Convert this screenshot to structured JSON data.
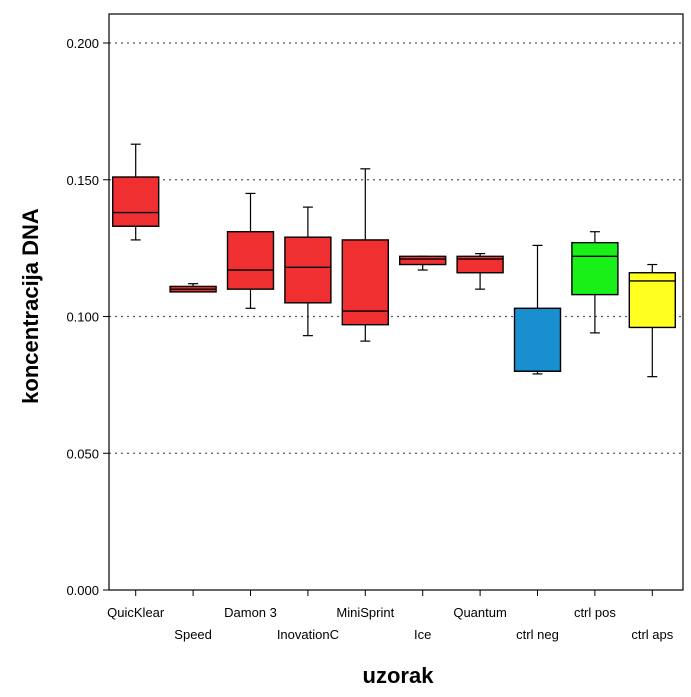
{
  "chart_data": {
    "type": "boxplot",
    "xlabel": "uzorak",
    "ylabel": "koncentracija DNA",
    "ylim": [
      0,
      0.2
    ],
    "yticks": [
      "0.000",
      "0.050",
      "0.100",
      "0.150",
      "0.200"
    ],
    "grid": "horizontal dotted",
    "categories": [
      "QuicKlear",
      "Speed",
      "Damon 3",
      "InovationC",
      "MiniSprint",
      "Ice",
      "Quantum",
      "ctrl neg",
      "ctrl pos",
      "ctrl aps"
    ],
    "boxes": [
      {
        "label": "QuicKlear",
        "min": 0.128,
        "q1": 0.133,
        "median": 0.138,
        "q3": 0.151,
        "max": 0.163,
        "color": "#f03030"
      },
      {
        "label": "Speed",
        "min": 0.109,
        "q1": 0.109,
        "median": 0.11,
        "q3": 0.111,
        "max": 0.112,
        "color": "#f03030"
      },
      {
        "label": "Damon 3",
        "min": 0.103,
        "q1": 0.11,
        "median": 0.117,
        "q3": 0.131,
        "max": 0.145,
        "color": "#f03030"
      },
      {
        "label": "InovationC",
        "min": 0.093,
        "q1": 0.105,
        "median": 0.118,
        "q3": 0.129,
        "max": 0.14,
        "color": "#f03030"
      },
      {
        "label": "MiniSprint",
        "min": 0.091,
        "q1": 0.097,
        "median": 0.102,
        "q3": 0.128,
        "max": 0.154,
        "color": "#f03030"
      },
      {
        "label": "Ice",
        "min": 0.117,
        "q1": 0.119,
        "median": 0.121,
        "q3": 0.122,
        "max": 0.122,
        "color": "#f03030"
      },
      {
        "label": "Quantum",
        "min": 0.11,
        "q1": 0.116,
        "median": 0.121,
        "q3": 0.122,
        "max": 0.123,
        "color": "#f03030"
      },
      {
        "label": "ctrl neg",
        "min": 0.079,
        "q1": 0.08,
        "median": 0.08,
        "q3": 0.103,
        "max": 0.126,
        "color": "#1a8fd0"
      },
      {
        "label": "ctrl pos",
        "min": 0.094,
        "q1": 0.108,
        "median": 0.122,
        "q3": 0.127,
        "max": 0.131,
        "color": "#18f018"
      },
      {
        "label": "ctrl aps",
        "min": 0.078,
        "q1": 0.096,
        "median": 0.113,
        "q3": 0.116,
        "max": 0.119,
        "color": "#ffff20"
      }
    ]
  }
}
